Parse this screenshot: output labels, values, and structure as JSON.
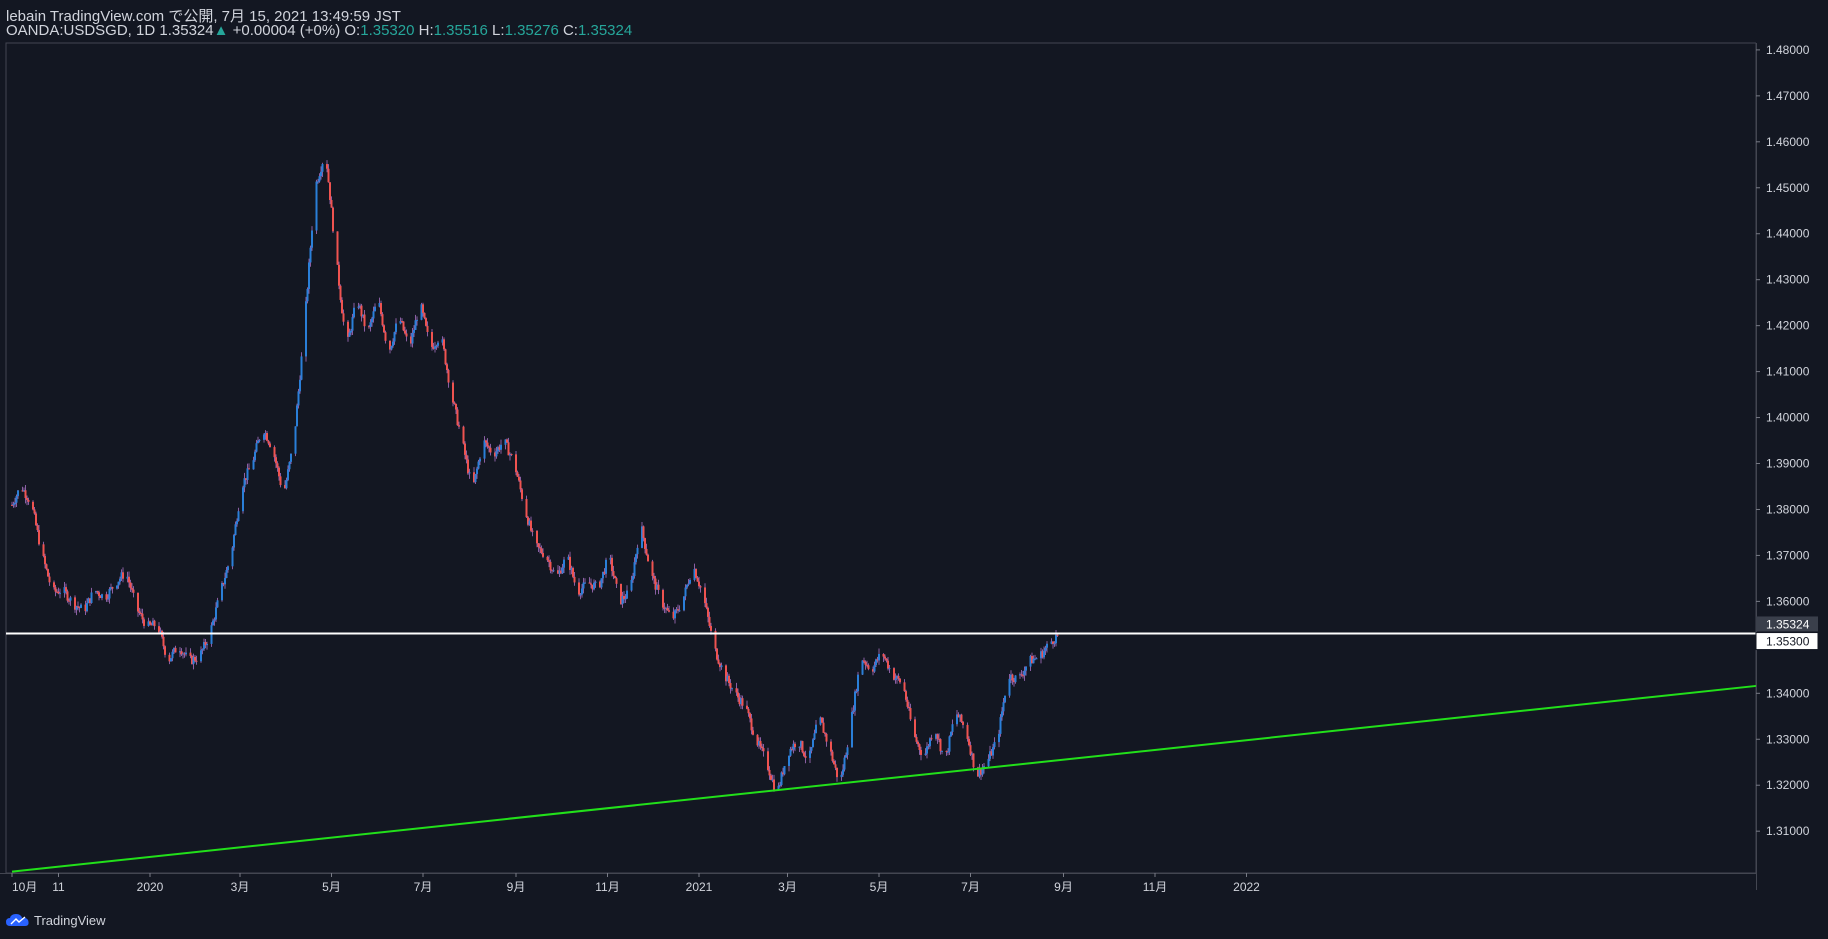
{
  "header": {
    "published": "lebain TradingView.com で公開, 7月 15, 2021 13:49:59 JST",
    "symbol": "OANDA:USDSGD, 1D",
    "last": "1.35324",
    "change_arrow": "▲",
    "change": "+0.00004 (+0%)",
    "o_label": "O:",
    "o_value": "1.35320",
    "h_label": "H:",
    "h_value": "1.35516",
    "l_label": "L:",
    "l_value": "1.35276",
    "c_label": "C:",
    "c_value": "1.35324"
  },
  "footer": {
    "brand": "TradingView",
    "logo_icon": "tradingview-cloud-icon"
  },
  "colors": {
    "background": "#131722",
    "up": "#2a7fd8",
    "down": "#ef5350",
    "wick": "#8a5fa3",
    "grid": "#2a2e39",
    "support_line": "#22e01a",
    "resistance_line": "#ffffff",
    "text": "#d1d4dc",
    "change_up": "#26a69a"
  },
  "chart_data": {
    "type": "candlestick",
    "x_axis_labels": [
      "10月",
      "11",
      "2020",
      "3月",
      "5月",
      "7月",
      "9月",
      "11月",
      "2021",
      "3月",
      "5月",
      "7月",
      "9月",
      "11月",
      "2022"
    ],
    "y_ticks": [
      "1.48000",
      "1.47000",
      "1.46000",
      "1.45000",
      "1.44000",
      "1.43000",
      "1.42000",
      "1.41000",
      "1.40000",
      "1.39000",
      "1.38000",
      "1.37000",
      "1.36000",
      "1.35300",
      "1.34000",
      "1.33000",
      "1.32000",
      "1.31000"
    ],
    "ylim": [
      1.3009,
      1.4815
    ],
    "last_price_label": "1.35324",
    "horizontal_line": {
      "value": 1.353,
      "label": "1.35300"
    },
    "trendline": [
      {
        "date": "2019-10-01",
        "price": 1.3012
      },
      {
        "date": "2022-01-01",
        "price": 1.3298
      }
    ],
    "close_path": [
      [
        "2019-10-01",
        1.381
      ],
      [
        "2019-10-07",
        1.3852
      ],
      [
        "2019-10-14",
        1.3812
      ],
      [
        "2019-10-21",
        1.3702
      ],
      [
        "2019-10-28",
        1.362
      ],
      [
        "2019-11-04",
        1.3625
      ],
      [
        "2019-11-11",
        1.3595
      ],
      [
        "2019-11-18",
        1.358
      ],
      [
        "2019-11-25",
        1.3625
      ],
      [
        "2019-12-02",
        1.3608
      ],
      [
        "2019-12-09",
        1.364
      ],
      [
        "2019-12-16",
        1.3665
      ],
      [
        "2019-12-23",
        1.3585
      ],
      [
        "2019-12-30",
        1.3545
      ],
      [
        "2020-01-06",
        1.355
      ],
      [
        "2020-01-13",
        1.347
      ],
      [
        "2020-01-20",
        1.3505
      ],
      [
        "2020-01-27",
        1.347
      ],
      [
        "2020-02-03",
        1.348
      ],
      [
        "2020-02-10",
        1.353
      ],
      [
        "2020-02-17",
        1.362
      ],
      [
        "2020-02-24",
        1.37
      ],
      [
        "2020-03-02",
        1.385
      ],
      [
        "2020-03-09",
        1.39
      ],
      [
        "2020-03-16",
        1.398
      ],
      [
        "2020-03-23",
        1.393
      ],
      [
        "2020-03-30",
        1.383
      ],
      [
        "2020-04-06",
        1.395
      ],
      [
        "2020-04-13",
        1.42
      ],
      [
        "2020-04-20",
        1.45
      ],
      [
        "2020-04-27",
        1.458
      ],
      [
        "2020-05-04",
        1.435
      ],
      [
        "2020-05-11",
        1.415
      ],
      [
        "2020-05-18",
        1.426
      ],
      [
        "2020-05-25",
        1.418
      ],
      [
        "2020-06-01",
        1.426
      ],
      [
        "2020-06-08",
        1.414
      ],
      [
        "2020-06-15",
        1.422
      ],
      [
        "2020-06-22",
        1.415
      ],
      [
        "2020-06-29",
        1.425
      ],
      [
        "2020-07-06",
        1.415
      ],
      [
        "2020-07-13",
        1.418
      ],
      [
        "2020-07-20",
        1.405
      ],
      [
        "2020-07-27",
        1.395
      ],
      [
        "2020-08-03",
        1.384
      ],
      [
        "2020-08-10",
        1.395
      ],
      [
        "2020-08-17",
        1.392
      ],
      [
        "2020-08-24",
        1.395
      ],
      [
        "2020-08-31",
        1.39
      ],
      [
        "2020-09-07",
        1.38
      ],
      [
        "2020-09-14",
        1.372
      ],
      [
        "2020-09-21",
        1.37
      ],
      [
        "2020-09-28",
        1.365
      ],
      [
        "2020-10-05",
        1.37
      ],
      [
        "2020-10-12",
        1.362
      ],
      [
        "2020-10-19",
        1.364
      ],
      [
        "2020-10-26",
        1.363
      ],
      [
        "2020-11-02",
        1.37
      ],
      [
        "2020-11-09",
        1.36
      ],
      [
        "2020-11-16",
        1.362
      ],
      [
        "2020-11-23",
        1.377
      ],
      [
        "2020-11-30",
        1.366
      ],
      [
        "2020-12-07",
        1.36
      ],
      [
        "2020-12-14",
        1.356
      ],
      [
        "2020-12-21",
        1.36
      ],
      [
        "2020-12-28",
        1.368
      ],
      [
        "2021-01-04",
        1.361
      ],
      [
        "2021-01-11",
        1.35
      ],
      [
        "2021-01-18",
        1.344
      ],
      [
        "2021-01-25",
        1.34
      ],
      [
        "2021-02-01",
        1.337
      ],
      [
        "2021-02-08",
        1.33
      ],
      [
        "2021-02-15",
        1.325
      ],
      [
        "2021-02-22",
        1.318
      ],
      [
        "2021-03-01",
        1.327
      ],
      [
        "2021-03-08",
        1.33
      ],
      [
        "2021-03-15",
        1.325
      ],
      [
        "2021-03-22",
        1.335
      ],
      [
        "2021-03-29",
        1.328
      ],
      [
        "2021-04-05",
        1.32
      ],
      [
        "2021-04-12",
        1.333
      ],
      [
        "2021-04-19",
        1.348
      ],
      [
        "2021-04-26",
        1.345
      ],
      [
        "2021-05-03",
        1.349
      ],
      [
        "2021-05-10",
        1.344
      ],
      [
        "2021-05-17",
        1.342
      ],
      [
        "2021-05-24",
        1.331
      ],
      [
        "2021-05-31",
        1.326
      ],
      [
        "2021-06-07",
        1.333
      ],
      [
        "2021-06-14",
        1.325
      ],
      [
        "2021-06-21",
        1.336
      ],
      [
        "2021-06-28",
        1.332
      ],
      [
        "2021-07-05",
        1.322
      ],
      [
        "2021-07-12",
        1.325
      ],
      [
        "2021-07-19",
        1.33
      ],
      [
        "2021-07-26",
        1.344
      ],
      [
        "2021-08-02",
        1.343
      ],
      [
        "2021-08-09",
        1.347
      ],
      [
        "2021-08-16",
        1.348
      ],
      [
        "2021-08-23",
        1.351
      ],
      [
        "2021-08-30",
        1.3532
      ]
    ]
  }
}
